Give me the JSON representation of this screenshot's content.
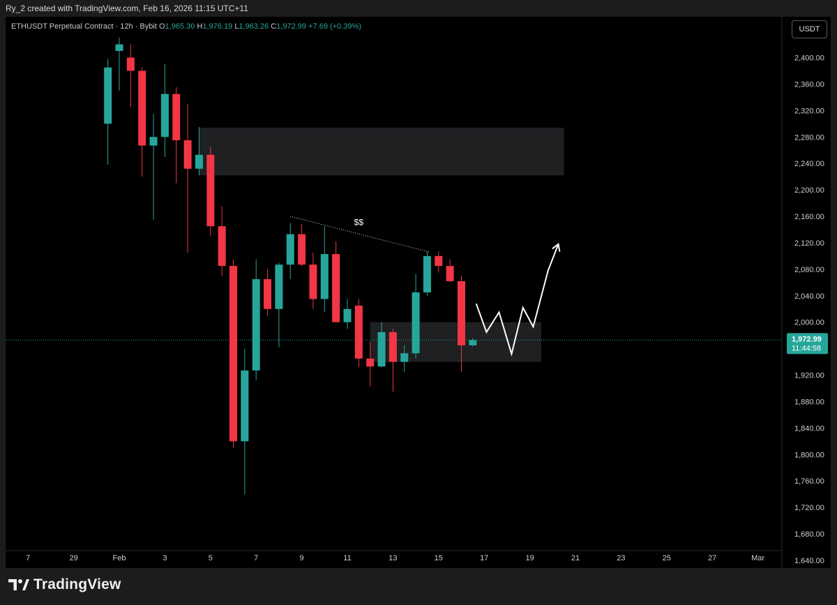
{
  "header": {
    "creator_text": "Ry_2 created with TradingView.com, Feb 16, 2026 11:15 UTC+11"
  },
  "legend": {
    "symbol": "ETHUSDT Perpetual Contract · 12h · Bybit",
    "o_label": "O",
    "o_value": "1,965.30",
    "h_label": "H",
    "h_value": "1,976.19",
    "l_label": "L",
    "l_value": "1,963.26",
    "c_label": "C",
    "c_value": "1,972.99",
    "change": "+7.69 (+0.39%)"
  },
  "currency_button": "USDT",
  "price_label": {
    "price": "1,972.99",
    "countdown": "11:44:58"
  },
  "brand": {
    "name": "TradingView"
  },
  "colors": {
    "up": "#26a69a",
    "down": "#f23645",
    "background": "#000000",
    "zone": "#1f2022",
    "axis_text": "#cfcfcf"
  },
  "chart_data": {
    "type": "candlestick",
    "interval": "12h",
    "ylim": [
      1620,
      2420
    ],
    "y_ticks": [
      "2,400.00",
      "2,360.00",
      "2,320.00",
      "2,280.00",
      "2,240.00",
      "2,200.00",
      "2,160.00",
      "2,120.00",
      "2,080.00",
      "2,040.00",
      "2,000.00",
      "1,960.00",
      "1,920.00",
      "1,880.00",
      "1,840.00",
      "1,800.00",
      "1,760.00",
      "1,720.00",
      "1,680.00",
      "1,640.00"
    ],
    "x_ticks": [
      {
        "label": "7",
        "slot": -8
      },
      {
        "label": "29",
        "slot": -4
      },
      {
        "label": "Feb",
        "slot": 0
      },
      {
        "label": "3",
        "slot": 4
      },
      {
        "label": "5",
        "slot": 8
      },
      {
        "label": "7",
        "slot": 12
      },
      {
        "label": "9",
        "slot": 16
      },
      {
        "label": "11",
        "slot": 20
      },
      {
        "label": "13",
        "slot": 24
      },
      {
        "label": "15",
        "slot": 28
      },
      {
        "label": "17",
        "slot": 32
      },
      {
        "label": "19",
        "slot": 36
      },
      {
        "label": "21",
        "slot": 40
      },
      {
        "label": "23",
        "slot": 44
      },
      {
        "label": "25",
        "slot": 48
      },
      {
        "label": "27",
        "slot": 52
      },
      {
        "label": "Mar",
        "slot": 56
      }
    ],
    "candles": [
      {
        "slot": -1,
        "o": 2300,
        "h": 2398,
        "l": 2238,
        "c": 2385
      },
      {
        "slot": 0,
        "o": 2410,
        "h": 2430,
        "l": 2350,
        "c": 2420
      },
      {
        "slot": 1,
        "o": 2400,
        "h": 2420,
        "l": 2325,
        "c": 2380
      },
      {
        "slot": 2,
        "o": 2380,
        "h": 2385,
        "l": 2220,
        "c": 2267
      },
      {
        "slot": 3,
        "o": 2267,
        "h": 2315,
        "l": 2155,
        "c": 2280
      },
      {
        "slot": 4,
        "o": 2280,
        "h": 2390,
        "l": 2250,
        "c": 2345
      },
      {
        "slot": 5,
        "o": 2345,
        "h": 2355,
        "l": 2210,
        "c": 2275
      },
      {
        "slot": 6,
        "o": 2275,
        "h": 2330,
        "l": 2105,
        "c": 2232
      },
      {
        "slot": 7,
        "o": 2232,
        "h": 2295,
        "l": 2222,
        "c": 2253
      },
      {
        "slot": 8,
        "o": 2253,
        "h": 2265,
        "l": 2130,
        "c": 2145
      },
      {
        "slot": 9,
        "o": 2145,
        "h": 2175,
        "l": 2070,
        "c": 2085
      },
      {
        "slot": 10,
        "o": 2085,
        "h": 2095,
        "l": 1810,
        "c": 1820
      },
      {
        "slot": 11,
        "o": 1820,
        "h": 1960,
        "l": 1740,
        "c": 1927
      },
      {
        "slot": 12,
        "o": 1927,
        "h": 2095,
        "l": 1912,
        "c": 2065
      },
      {
        "slot": 13,
        "o": 2065,
        "h": 2080,
        "l": 2010,
        "c": 2020
      },
      {
        "slot": 14,
        "o": 2020,
        "h": 2090,
        "l": 1962,
        "c": 2087
      },
      {
        "slot": 15,
        "o": 2087,
        "h": 2150,
        "l": 2065,
        "c": 2133
      },
      {
        "slot": 16,
        "o": 2133,
        "h": 2148,
        "l": 2085,
        "c": 2087
      },
      {
        "slot": 17,
        "o": 2087,
        "h": 2105,
        "l": 2020,
        "c": 2035
      },
      {
        "slot": 18,
        "o": 2035,
        "h": 2145,
        "l": 2015,
        "c": 2103
      },
      {
        "slot": 19,
        "o": 2103,
        "h": 2122,
        "l": 2000,
        "c": 2000
      },
      {
        "slot": 20,
        "o": 2000,
        "h": 2035,
        "l": 1990,
        "c": 2020
      },
      {
        "slot": 21,
        "o": 2025,
        "h": 2035,
        "l": 1932,
        "c": 1945
      },
      {
        "slot": 22,
        "o": 1945,
        "h": 1970,
        "l": 1903,
        "c": 1933
      },
      {
        "slot": 23,
        "o": 1933,
        "h": 2000,
        "l": 1932,
        "c": 1985
      },
      {
        "slot": 24,
        "o": 1985,
        "h": 1990,
        "l": 1895,
        "c": 1940
      },
      {
        "slot": 25,
        "o": 1940,
        "h": 1965,
        "l": 1925,
        "c": 1953
      },
      {
        "slot": 26,
        "o": 1953,
        "h": 2073,
        "l": 1945,
        "c": 2045
      },
      {
        "slot": 27,
        "o": 2045,
        "h": 2107,
        "l": 2040,
        "c": 2100
      },
      {
        "slot": 28,
        "o": 2100,
        "h": 2107,
        "l": 2075,
        "c": 2085
      },
      {
        "slot": 29,
        "o": 2085,
        "h": 2095,
        "l": 2060,
        "c": 2062
      },
      {
        "slot": 30,
        "o": 2062,
        "h": 2070,
        "l": 1925,
        "c": 1965
      },
      {
        "slot": 31,
        "o": 1965,
        "h": 1976.19,
        "l": 1963.26,
        "c": 1972.99
      }
    ],
    "current_price": 1972.99,
    "zones": [
      {
        "slot_from": 7,
        "slot_to": 39,
        "y_from": 2222,
        "y_to": 2294
      },
      {
        "slot_from": 22,
        "slot_to": 37,
        "y_from": 1940,
        "y_to": 2000
      }
    ],
    "trendline": {
      "from": {
        "slot": 15,
        "y": 2160
      },
      "to": {
        "slot": 27.2,
        "y": 2106
      }
    },
    "trendline_label": "$$",
    "trendline_label_at": {
      "slot": 21,
      "y": 2147
    },
    "projection_path": [
      {
        "slot": 31.3,
        "y": 2028
      },
      {
        "slot": 32.2,
        "y": 1985
      },
      {
        "slot": 33.3,
        "y": 2015
      },
      {
        "slot": 34.4,
        "y": 1952
      },
      {
        "slot": 35.4,
        "y": 2022
      },
      {
        "slot": 36.3,
        "y": 1993
      },
      {
        "slot": 37.6,
        "y": 2078
      },
      {
        "slot": 38.5,
        "y": 2118
      }
    ]
  }
}
